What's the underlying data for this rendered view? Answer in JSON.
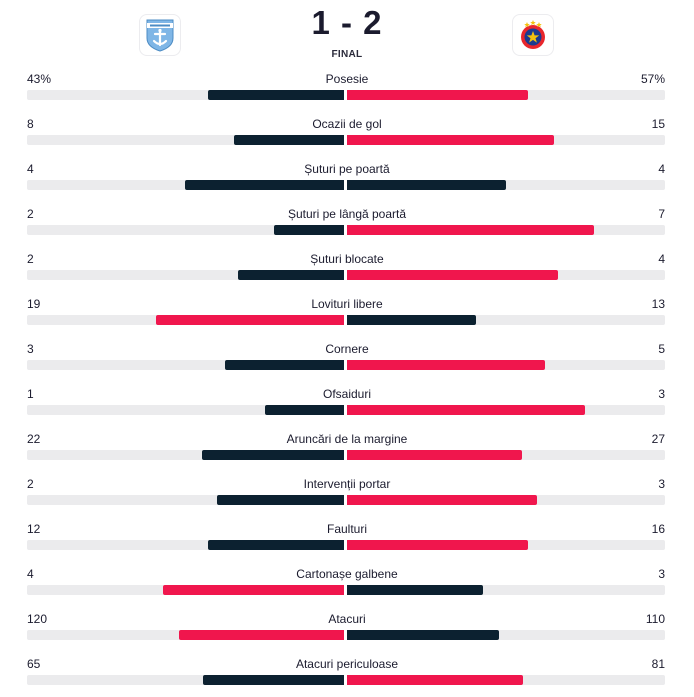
{
  "match": {
    "score": "1 - 2",
    "status": "FINAL",
    "home_team": {
      "logo_icon": "home-club-crest-icon"
    },
    "away_team": {
      "logo_icon": "fcsb-crest-icon"
    }
  },
  "colors": {
    "dark": "#0c2130",
    "red": "#f0164d",
    "track": "#ebebed"
  },
  "stats": [
    {
      "label": "Posesie",
      "home": "43%",
      "away": "57%",
      "home_value": 43,
      "away_value": 57
    },
    {
      "label": "Ocazii de gol",
      "home": "8",
      "away": "15",
      "home_value": 8,
      "away_value": 15
    },
    {
      "label": "Șuturi pe poartă",
      "home": "4",
      "away": "4",
      "home_value": 4,
      "away_value": 4
    },
    {
      "label": "Șuturi pe lângă poartă",
      "home": "2",
      "away": "7",
      "home_value": 2,
      "away_value": 7
    },
    {
      "label": "Șuturi blocate",
      "home": "2",
      "away": "4",
      "home_value": 2,
      "away_value": 4
    },
    {
      "label": "Lovituri libere",
      "home": "19",
      "away": "13",
      "home_value": 19,
      "away_value": 13
    },
    {
      "label": "Cornere",
      "home": "3",
      "away": "5",
      "home_value": 3,
      "away_value": 5
    },
    {
      "label": "Ofsaiduri",
      "home": "1",
      "away": "3",
      "home_value": 1,
      "away_value": 3
    },
    {
      "label": "Aruncări de la margine",
      "home": "22",
      "away": "27",
      "home_value": 22,
      "away_value": 27
    },
    {
      "label": "Intervenții portar",
      "home": "2",
      "away": "3",
      "home_value": 2,
      "away_value": 3
    },
    {
      "label": "Faulturi",
      "home": "12",
      "away": "16",
      "home_value": 12,
      "away_value": 16
    },
    {
      "label": "Cartonașe galbene",
      "home": "4",
      "away": "3",
      "home_value": 4,
      "away_value": 3
    },
    {
      "label": "Atacuri",
      "home": "120",
      "away": "110",
      "home_value": 120,
      "away_value": 110
    },
    {
      "label": "Atacuri periculoase",
      "home": "65",
      "away": "81",
      "home_value": 65,
      "away_value": 81
    }
  ]
}
